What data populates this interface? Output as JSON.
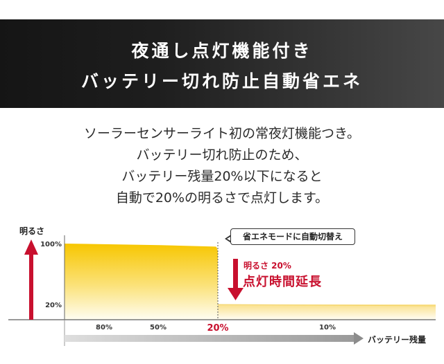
{
  "banner": {
    "line1": "夜通し点灯機能付き",
    "line2": "バッテリー切れ防止自動省エネ"
  },
  "description": [
    "ソーラーセンサーライト初の常夜灯機能つき。",
    "バッテリー切れ防止のため、",
    "バッテリー残量20%以下になると",
    "自動で20%の明るさで点灯します。"
  ],
  "callout": "省エネモードに自動切替え",
  "note": {
    "small": "明るさ 20%",
    "big": "点灯時間延長"
  },
  "colors": {
    "accent_red": "#c8102e",
    "fill_yellow": "#f7c600",
    "banner_dark": "#1a1a1a"
  },
  "chart_data": {
    "type": "area",
    "xlabel": "バッテリー残量",
    "ylabel": "明るさ",
    "x_ticks": [
      "80%",
      "50%",
      "20%",
      "10%"
    ],
    "highlight_tick": "20%",
    "y_ticks": [
      "100%",
      "20%"
    ],
    "x_direction": "decreasing",
    "series": [
      {
        "x": [
          100,
          50,
          21,
          20,
          10,
          0
        ],
        "y": [
          100,
          98,
          96,
          20,
          20,
          20
        ]
      }
    ],
    "ylim": [
      0,
      100
    ],
    "grid": false
  }
}
